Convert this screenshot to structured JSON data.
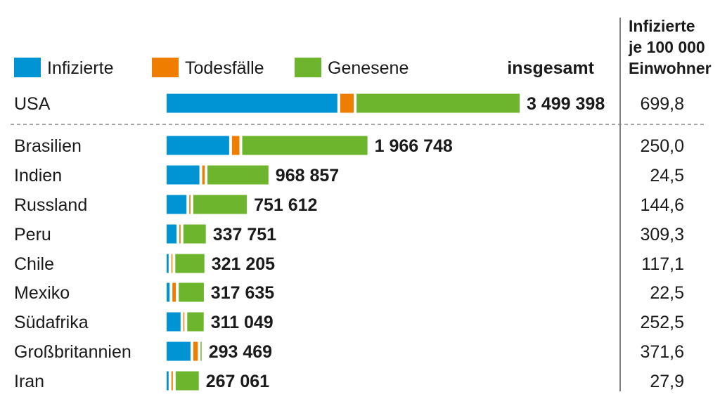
{
  "legend": {
    "infected_label": "Infizierte",
    "deaths_label": "Todesfälle",
    "recovered_label": "Genesene"
  },
  "headers": {
    "total": "insgesamt",
    "rate_line1": "Infizierte",
    "rate_line2": "je 100 000",
    "rate_line3": "Einwohner"
  },
  "colors": {
    "infected": "#0094d4",
    "deaths": "#ef7d00",
    "recovered": "#6cb52d"
  },
  "chart_data": {
    "type": "bar",
    "orientation": "horizontal",
    "stacked": true,
    "categories": [
      "USA",
      "Brasilien",
      "Indien",
      "Russland",
      "Peru",
      "Chile",
      "Mexiko",
      "Südafrika",
      "Großbritannien",
      "Iran"
    ],
    "series": [
      {
        "name": "Infizierte",
        "values": [
          1720000,
          630000,
          330000,
          200000,
          100000,
          20000,
          30000,
          140000,
          240000,
          20000
        ]
      },
      {
        "name": "Todesfälle",
        "values": [
          137000,
          75000,
          25000,
          12000,
          12000,
          8000,
          35000,
          5000,
          45000,
          14000
        ]
      },
      {
        "name": "Genesene",
        "values": [
          1642398,
          1261748,
          613857,
          539612,
          225751,
          293205,
          252635,
          166049,
          8469,
          233061
        ]
      }
    ],
    "totals": [
      "3 499 398",
      "1 966 748",
      "968 857",
      "751 612",
      "337 751",
      "321 205",
      "317 635",
      "311 049",
      "293 469",
      "267 061"
    ],
    "rates": [
      "699,8",
      "250,0",
      "24,5",
      "144,6",
      "309,3",
      "117,1",
      "22,5",
      "252,5",
      "371,6",
      "27,9"
    ]
  }
}
